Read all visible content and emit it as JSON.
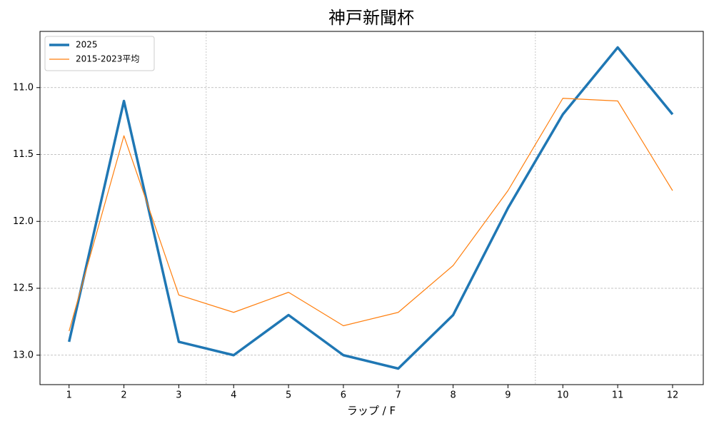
{
  "chart_data": {
    "type": "line",
    "title": "神戸新聞杯",
    "xlabel": "ラップ / F",
    "x": [
      1,
      2,
      3,
      4,
      5,
      6,
      7,
      8,
      9,
      10,
      11,
      12
    ],
    "series": [
      {
        "name": "2025",
        "color": "#1f77b4",
        "width": 3.5,
        "values": [
          12.9,
          11.1,
          12.9,
          13.0,
          12.7,
          13.0,
          13.1,
          12.7,
          11.9,
          11.2,
          10.7,
          11.2
        ]
      },
      {
        "name": "2015-2023平均",
        "color": "#ff7f0e",
        "width": 1.2,
        "values": [
          12.82,
          11.36,
          12.55,
          12.68,
          12.53,
          12.78,
          12.68,
          12.33,
          11.77,
          11.08,
          11.1,
          11.77
        ]
      }
    ],
    "xlim": [
      0.47,
      12.56
    ],
    "xticks": [
      1,
      2,
      3,
      4,
      5,
      6,
      7,
      8,
      9,
      10,
      11,
      12
    ],
    "ylim": [
      13.22,
      10.58
    ],
    "y_inverted": true,
    "yticks": [
      {
        "value": 11,
        "label": "11.0"
      },
      11.5,
      {
        "value": 12,
        "label": "12.0"
      },
      12.5,
      {
        "value": 13,
        "label": "13.0"
      }
    ],
    "vlines": [
      3.5,
      9.5
    ],
    "grid": true,
    "legend": "upper-left"
  }
}
